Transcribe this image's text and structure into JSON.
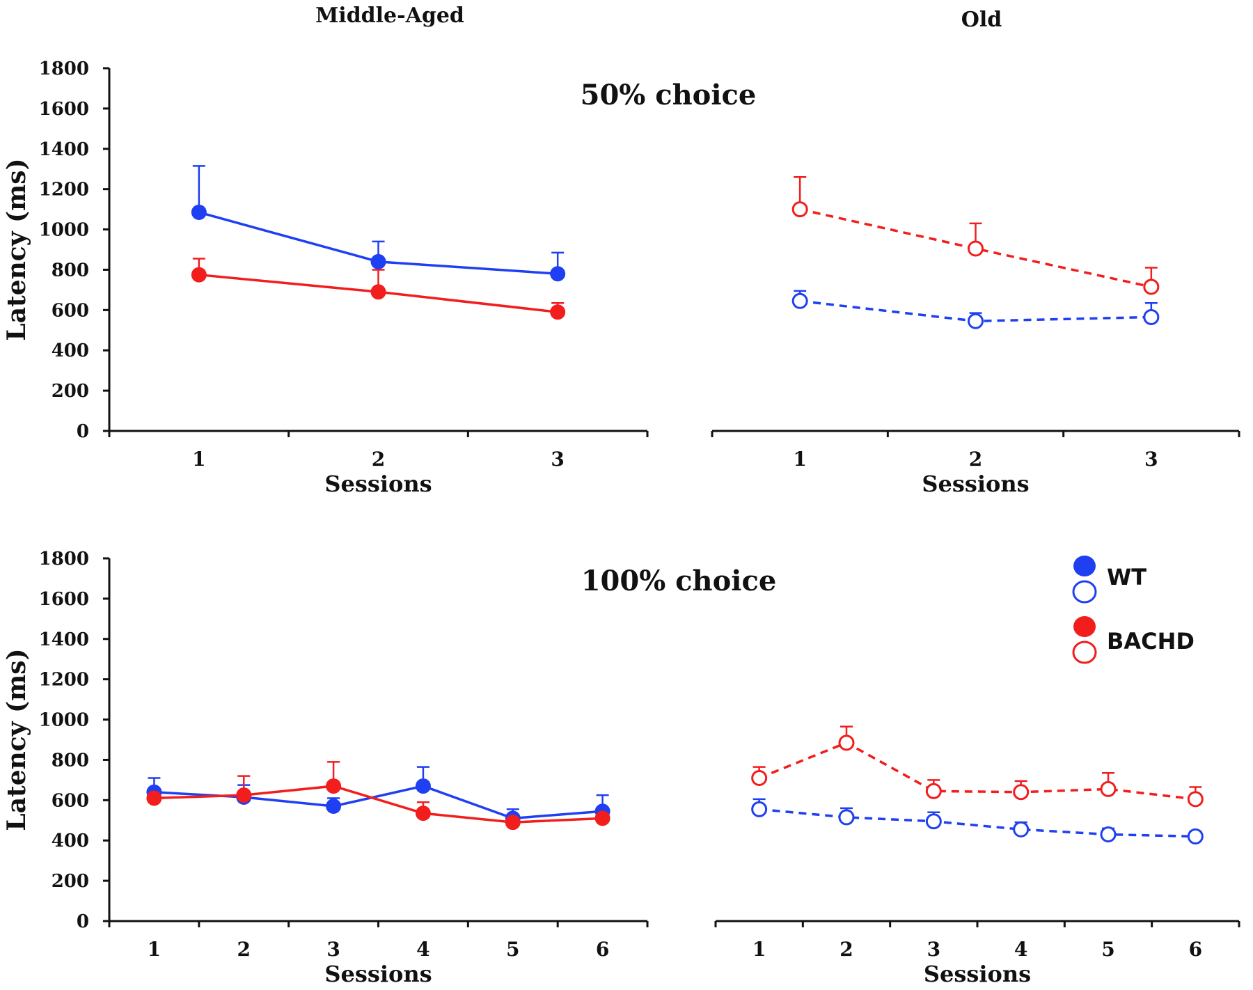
{
  "colors": {
    "wt": "#1f3ff2",
    "bachd": "#f21d1d",
    "axis": "#111111"
  },
  "column_titles": {
    "left": "Middle-Aged",
    "right": "Old"
  },
  "legend": {
    "wt": "WT",
    "bachd": "BACHD"
  },
  "chart_data": [
    {
      "type": "line",
      "panel": "Middle-Aged",
      "title": "50% choice",
      "xlabel": "Sessions",
      "ylabel": "Latency (ms)",
      "ylim": [
        0,
        1800
      ],
      "yticks": [
        0,
        200,
        400,
        600,
        800,
        1000,
        1200,
        1400,
        1600,
        1800
      ],
      "categories": [
        "1",
        "2",
        "3"
      ],
      "series": [
        {
          "name": "WT",
          "group": "wt",
          "filled": true,
          "dashed": false,
          "values": [
            1085,
            840,
            780
          ],
          "errors": [
            230,
            100,
            105
          ]
        },
        {
          "name": "BACHD",
          "group": "bachd",
          "filled": true,
          "dashed": false,
          "values": [
            775,
            690,
            590
          ],
          "errors": [
            80,
            110,
            45
          ]
        }
      ]
    },
    {
      "type": "line",
      "panel": "Old",
      "title": "",
      "xlabel": "Sessions",
      "ylabel": "",
      "ylim": [
        0,
        1800
      ],
      "categories": [
        "1",
        "2",
        "3"
      ],
      "series": [
        {
          "name": "WT",
          "group": "wt",
          "filled": false,
          "dashed": true,
          "values": [
            645,
            545,
            565
          ],
          "errors": [
            50,
            40,
            70
          ]
        },
        {
          "name": "BACHD",
          "group": "bachd",
          "filled": false,
          "dashed": true,
          "values": [
            1100,
            905,
            715
          ],
          "errors": [
            160,
            125,
            95
          ]
        }
      ]
    },
    {
      "type": "line",
      "panel": "Middle-Aged",
      "title": "100% choice",
      "xlabel": "Sessions",
      "ylabel": "Latency (ms)",
      "ylim": [
        0,
        1800
      ],
      "yticks": [
        0,
        200,
        400,
        600,
        800,
        1000,
        1200,
        1400,
        1600,
        1800
      ],
      "categories": [
        "1",
        "2",
        "3",
        "4",
        "5",
        "6"
      ],
      "series": [
        {
          "name": "WT",
          "group": "wt",
          "filled": true,
          "dashed": false,
          "values": [
            640,
            615,
            570,
            670,
            510,
            545
          ],
          "errors": [
            70,
            60,
            40,
            95,
            45,
            80
          ]
        },
        {
          "name": "BACHD",
          "group": "bachd",
          "filled": true,
          "dashed": false,
          "values": [
            610,
            625,
            670,
            535,
            490,
            510
          ],
          "errors": [
            30,
            95,
            120,
            55,
            25,
            30
          ]
        }
      ]
    },
    {
      "type": "line",
      "panel": "Old",
      "title": "",
      "xlabel": "Sessions",
      "ylabel": "",
      "ylim": [
        0,
        1800
      ],
      "categories": [
        "1",
        "2",
        "3",
        "4",
        "5",
        "6"
      ],
      "series": [
        {
          "name": "WT",
          "group": "wt",
          "filled": false,
          "dashed": true,
          "values": [
            555,
            515,
            495,
            455,
            430,
            420
          ],
          "errors": [
            50,
            45,
            45,
            35,
            30,
            25
          ]
        },
        {
          "name": "BACHD",
          "group": "bachd",
          "filled": false,
          "dashed": true,
          "values": [
            710,
            885,
            645,
            640,
            655,
            605
          ],
          "errors": [
            55,
            80,
            55,
            55,
            80,
            60
          ]
        }
      ]
    }
  ]
}
